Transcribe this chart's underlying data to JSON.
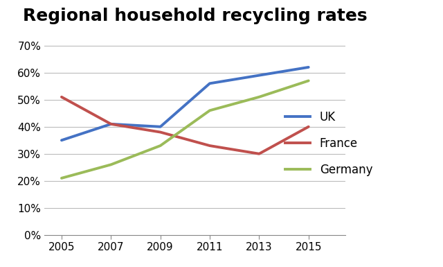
{
  "title": "Regional household recycling rates",
  "years": [
    2005,
    2007,
    2009,
    2011,
    2013,
    2015
  ],
  "series": {
    "UK": {
      "values": [
        35,
        41,
        40,
        56,
        59,
        62
      ],
      "color": "#4472C4"
    },
    "France": {
      "values": [
        51,
        41,
        38,
        33,
        30,
        40
      ],
      "color": "#C0504D"
    },
    "Germany": {
      "values": [
        21,
        26,
        33,
        46,
        51,
        57
      ],
      "color": "#9BBB59"
    }
  },
  "ylim": [
    0,
    75
  ],
  "yticks": [
    0,
    10,
    20,
    30,
    40,
    50,
    60,
    70
  ],
  "ytick_labels": [
    "0%",
    "10%",
    "20%",
    "30%",
    "40%",
    "50%",
    "60%",
    "70%"
  ],
  "xlim": [
    2004.3,
    2016.5
  ],
  "xticks": [
    2005,
    2007,
    2009,
    2011,
    2013,
    2015
  ],
  "grid_color": "#BBBBBB",
  "title_fontsize": 18,
  "legend_fontsize": 12,
  "tick_fontsize": 11,
  "line_width": 2.8,
  "background_color": "#FFFFFF"
}
